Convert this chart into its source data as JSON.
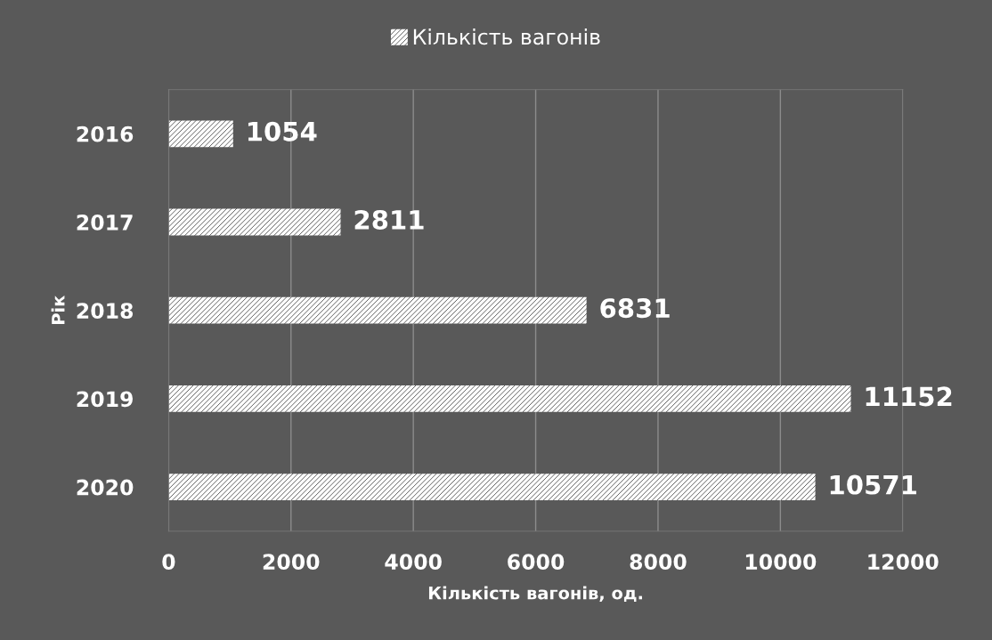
{
  "chart_data": {
    "type": "bar",
    "orientation": "horizontal",
    "categories": [
      "2016",
      "2017",
      "2018",
      "2019",
      "2020"
    ],
    "series": [
      {
        "name": "Кількість вагонів",
        "color": "#ffffff",
        "values": [
          1054,
          2811,
          6831,
          11152,
          10571
        ]
      }
    ],
    "xlabel": "Кількість вагонів, од.",
    "ylabel": "Рік",
    "xlim": [
      0,
      12000
    ],
    "xticks": [
      0,
      2000,
      4000,
      6000,
      8000,
      10000,
      12000
    ],
    "grid": "x",
    "legend": "top",
    "data_labels": true
  }
}
